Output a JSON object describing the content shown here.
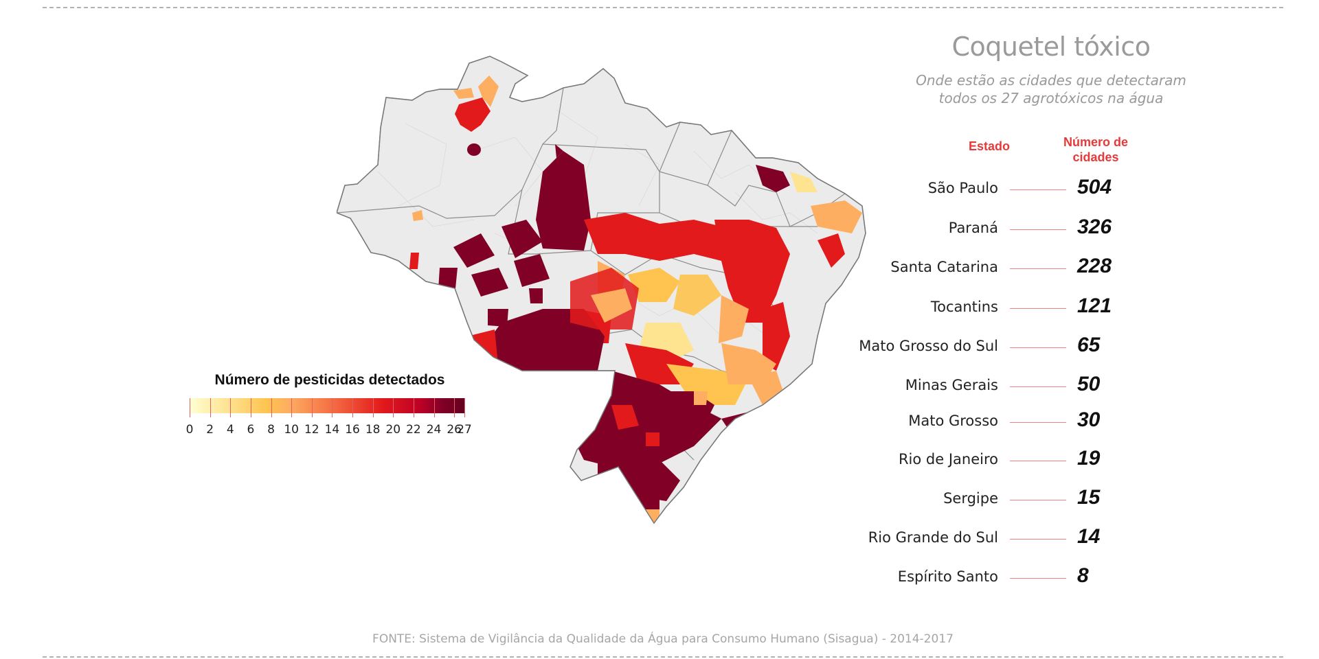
{
  "title": "Coquetel tóxico",
  "subtitle_lines": [
    "Onde estão as cidades que detectaram",
    "todos os 27 agrotóxicos na água"
  ],
  "legend": {
    "title": "Número de pesticidas detectados",
    "scale_min": 0,
    "scale_max": 27,
    "labels": [
      "0",
      "2",
      "4",
      "6",
      "8",
      "10",
      "12",
      "14",
      "16",
      "18",
      "20",
      "22",
      "24",
      "26",
      "27"
    ],
    "color_low": "#ffffd4",
    "color_high": "#67001f"
  },
  "table": {
    "estado_header": "Estado",
    "numero_header_lines": [
      "Número de",
      "cidades"
    ],
    "rows": [
      {
        "state": "São Paulo",
        "value": "504"
      },
      {
        "state": "Paraná",
        "value": "326"
      },
      {
        "state": "Santa Catarina",
        "value": "228"
      },
      {
        "state": "Tocantins",
        "value": "121"
      },
      {
        "state": "Mato Grosso do Sul",
        "value": "65"
      },
      {
        "state": "Minas Gerais",
        "value": "50"
      },
      {
        "state": "Mato Grosso",
        "value": "30"
      },
      {
        "state": "Rio de Janeiro",
        "value": "19"
      },
      {
        "state": "Sergipe",
        "value": "15"
      },
      {
        "state": "Rio Grande do Sul",
        "value": "14"
      },
      {
        "state": "Espírito Santo",
        "value": "8"
      }
    ]
  },
  "source": "FONTE: Sistema de Vigilância da Qualidade da Água para Consumo Humano (Sisagua) - 2014-2017",
  "colors": {
    "accent": "#e63a3a",
    "title_gray": "#9a9a9a",
    "map_base": "#ebebeb",
    "map_border": "#8c8c8c"
  }
}
